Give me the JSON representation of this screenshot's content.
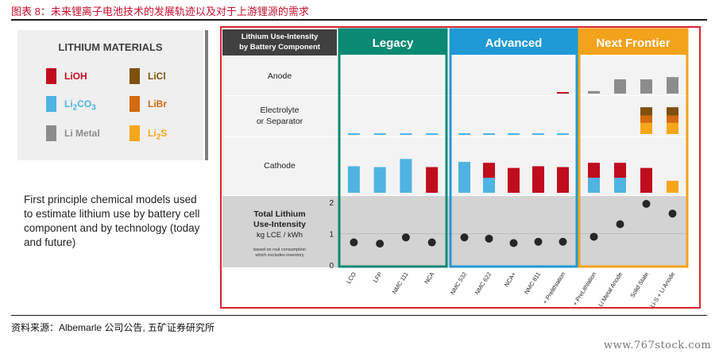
{
  "figure_title": "图表 8：未来锂离子电池技术的发展轨迹以及对于上游锂源的需求",
  "source_text": "资料来源：Albemarle 公司公告, 五矿证券研究所",
  "watermark": "www.767stock.com",
  "description": "First principle chemical models used to estimate lithium use by battery cell component and by technology (today and future)",
  "legend": {
    "title": "LITHIUM MATERIALS",
    "items": [
      {
        "label": "LiOH",
        "color": "#c00d1e"
      },
      {
        "label": "LiCl",
        "color": "#7f5010"
      },
      {
        "label": "Li",
        "sub": "2",
        "suffix": "CO",
        "sub2": "3",
        "color": "#4fb3e4"
      },
      {
        "label": "LiBr",
        "color": "#d4690e"
      },
      {
        "label": "Li Metal",
        "color": "#8c8c8c"
      },
      {
        "label": "Li",
        "sub": "2",
        "suffix": "S",
        "color": "#f7a51a"
      }
    ]
  },
  "chart_data": {
    "type": "bar",
    "title": "Lithium Use-Intensity by Battery Component",
    "groups": [
      {
        "name": "Legacy",
        "color": "#0a8a74",
        "categories": [
          "LCO",
          "LFP",
          "NMC 111",
          "NCA"
        ]
      },
      {
        "name": "Advanced",
        "color": "#1f9ad6",
        "categories": [
          "NMC 532",
          "NMC 622",
          "NCA+",
          "NMC 811",
          "+ Prelithiation"
        ]
      },
      {
        "name": "Next Frontier",
        "color": "#f3a21b",
        "categories": [
          "+ PreLithiation",
          "Li Metal Anode",
          "Solid State",
          "Li-S + Li Anode"
        ]
      }
    ],
    "rows": [
      {
        "label": "Anode"
      },
      {
        "label": "Electrolyte or Separator"
      },
      {
        "label": "Cathode"
      }
    ],
    "total_row": {
      "label": "Total Lithium Use-Intensity",
      "unit": "kg LCE / kWh",
      "note": "based on real consumption which excludes inventory",
      "ylim": [
        0,
        2
      ],
      "yticks": [
        "0",
        "1",
        "2"
      ]
    },
    "series": [
      {
        "row": "Cathode",
        "material": "Li2CO3",
        "values": [
          0.62,
          0.6,
          0.79,
          0,
          0.72,
          0.35,
          0,
          0,
          0,
          0.35,
          0.35,
          0,
          0
        ]
      },
      {
        "row": "Cathode",
        "material": "LiOH",
        "values": [
          0,
          0,
          0,
          0.6,
          0,
          0.35,
          0.58,
          0.62,
          0.6,
          0.35,
          0.35,
          0.58,
          0
        ]
      },
      {
        "row": "Cathode",
        "material": "Li2S",
        "values": [
          0,
          0,
          0,
          0,
          0,
          0,
          0,
          0,
          0,
          0,
          0,
          0,
          0.28
        ]
      },
      {
        "row": "Electrolyte or Separator",
        "material": "Li2CO3",
        "values": [
          0.05,
          0.05,
          0.05,
          0.05,
          0.05,
          0.05,
          0.05,
          0.05,
          0.05,
          0,
          0,
          0,
          0
        ]
      },
      {
        "row": "Electrolyte or Separator",
        "material": "Li2S",
        "values": [
          0,
          0,
          0,
          0,
          0,
          0,
          0,
          0,
          0,
          0,
          0,
          0.3,
          0.3
        ]
      },
      {
        "row": "Electrolyte or Separator",
        "material": "LiBr",
        "values": [
          0,
          0,
          0,
          0,
          0,
          0,
          0,
          0,
          0,
          0,
          0,
          0.2,
          0.2
        ]
      },
      {
        "row": "Electrolyte or Separator",
        "material": "LiCl",
        "values": [
          0,
          0,
          0,
          0,
          0,
          0,
          0,
          0,
          0,
          0,
          0,
          0.22,
          0.22
        ]
      },
      {
        "row": "Anode",
        "material": "LiOH",
        "values": [
          0,
          0,
          0,
          0,
          0,
          0,
          0,
          0,
          0.05,
          0,
          0,
          0,
          0
        ]
      },
      {
        "row": "Anode",
        "material": "Li Metal",
        "values": [
          0,
          0,
          0,
          0,
          0,
          0,
          0,
          0,
          0,
          0.08,
          0.45,
          0.45,
          0.52
        ]
      }
    ],
    "total_values": [
      0.72,
      0.68,
      0.88,
      0.72,
      0.88,
      0.84,
      0.7,
      0.74,
      0.74,
      0.9,
      1.3,
      1.95,
      1.64
    ]
  }
}
